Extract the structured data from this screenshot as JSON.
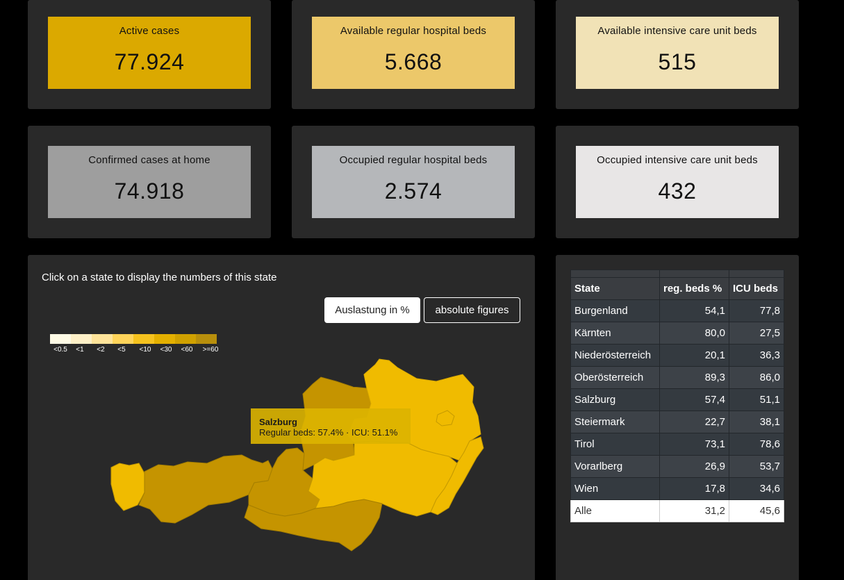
{
  "cards": [
    {
      "label": "Active cases",
      "value": "77.924",
      "color": "#dba900"
    },
    {
      "label": "Available regular hospital beds",
      "value": "5.668",
      "color": "#ecc86a"
    },
    {
      "label": "Available intensive care unit beds",
      "value": "515",
      "color": "#f1e2b6"
    },
    {
      "label": "Confirmed cases at home",
      "value": "74.918",
      "color": "#9e9e9e"
    },
    {
      "label": "Occupied regular hospital beds",
      "value": "2.574",
      "color": "#b5b7ba"
    },
    {
      "label": "Occupied intensive care unit beds",
      "value": "432",
      "color": "#e8e6e6"
    }
  ],
  "map": {
    "hint": "Click on a state to display the numbers of this state",
    "buttons": {
      "percent": "Auslastung in %",
      "absolute": "absolute figures"
    },
    "legend": [
      {
        "label": "<0.5",
        "color": "#fffbe6"
      },
      {
        "label": "<1",
        "color": "#fff1c8"
      },
      {
        "label": "<2",
        "color": "#ffe49a"
      },
      {
        "label": "<5",
        "color": "#ffd45a"
      },
      {
        "label": "<10",
        "color": "#f5c21e"
      },
      {
        "label": "<30",
        "color": "#e4b000"
      },
      {
        "label": "<60",
        "color": "#d0a100"
      },
      {
        "label": ">=60",
        "color": "#b88f0c"
      }
    ],
    "tooltip": {
      "title": "Salzburg",
      "text": "Regular beds: 57.4% · ICU: 51.1%"
    }
  },
  "table": {
    "headers": [
      "State",
      "reg. beds %",
      "ICU beds"
    ],
    "rows": [
      [
        "Burgenland",
        "54,1",
        "77,8"
      ],
      [
        "Kärnten",
        "80,0",
        "27,5"
      ],
      [
        "Niederösterreich",
        "20,1",
        "36,3"
      ],
      [
        "Oberösterreich",
        "89,3",
        "86,0"
      ],
      [
        "Salzburg",
        "57,4",
        "51,1"
      ],
      [
        "Steiermark",
        "22,7",
        "38,1"
      ],
      [
        "Tirol",
        "73,1",
        "78,6"
      ],
      [
        "Vorarlberg",
        "26,9",
        "53,7"
      ],
      [
        "Wien",
        "17,8",
        "34,6"
      ]
    ],
    "total": [
      "Alle",
      "31,2",
      "45,6"
    ]
  }
}
